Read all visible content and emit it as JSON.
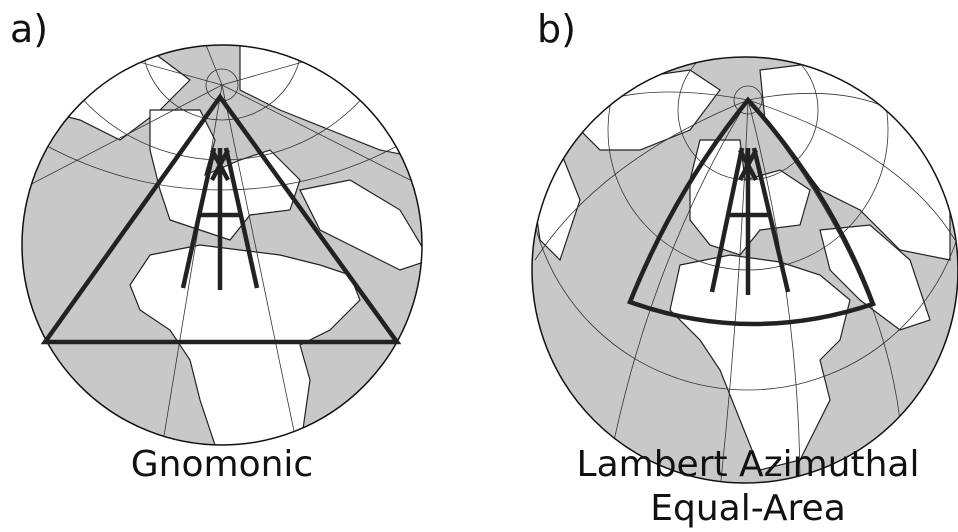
{
  "panels": [
    {
      "label": "a)",
      "caption": [
        "Gnomonic"
      ]
    },
    {
      "label": "b)",
      "caption": [
        "Lambert Azimuthal",
        "Equal-Area"
      ]
    }
  ]
}
